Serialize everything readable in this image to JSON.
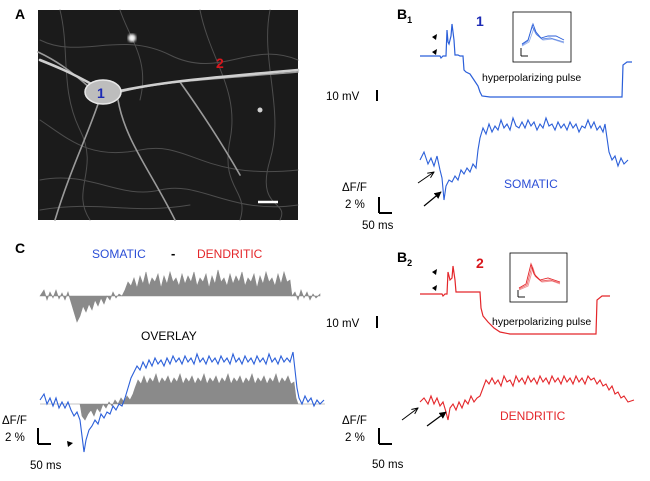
{
  "panels": {
    "a": {
      "label": "A",
      "site1": "1",
      "site2": "2"
    },
    "b1": {
      "label_main": "B",
      "label_sub": "1",
      "site_label": "1",
      "scale_voltage": "10 mV",
      "annotation_pulse": "hyperpolarizing pulse",
      "trace_label": "SOMATIC",
      "df_label": "ΔF/F",
      "scale_df": "2 %",
      "scale_time": "50 ms"
    },
    "b2": {
      "label_main": "B",
      "label_sub": "2",
      "site_label": "2",
      "scale_voltage": "10 mV",
      "annotation_pulse": "hyperpolarizing pulse",
      "trace_label": "DENDRITIC",
      "df_label": "ΔF/F",
      "scale_df": "2 %",
      "scale_time": "50 ms"
    },
    "c": {
      "label": "C",
      "title_somatic": "SOMATIC",
      "title_minus": "-",
      "title_dendritic": "DENDRITIC",
      "overlay_label": "OVERLAY",
      "df_label": "ΔF/F",
      "scale_df": "2 %",
      "scale_time": "50 ms"
    }
  },
  "colors": {
    "somatic": "#2b5fd9",
    "dendritic": "#e4262a",
    "difference": "#8a8a8a",
    "site1_text": "#1c2ab5",
    "site2_text": "#d8161c"
  }
}
